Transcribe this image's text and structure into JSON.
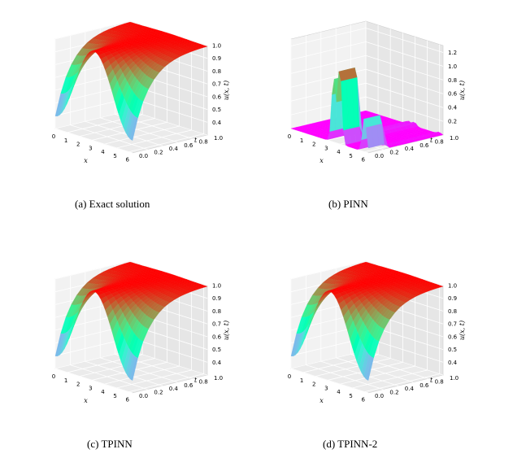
{
  "captions": {
    "a": "(a)  Exact solution",
    "b": "(b)  PINN",
    "c": "(c)  TPINN",
    "d": "(d)  TPINN-2"
  },
  "chart_data": [
    {
      "type": "surface3d",
      "id": "a",
      "xlabel": "x",
      "ylabel": "t",
      "zlabel": "u(x, t)",
      "x_ticks": [
        "0",
        "1",
        "2",
        "3",
        "4",
        "5",
        "6"
      ],
      "t_ticks": [
        "0.0",
        "0.2",
        "0.4",
        "0.6",
        "0.8",
        "1.0"
      ],
      "z_ticks": [
        "0.4",
        "0.5",
        "0.6",
        "0.7",
        "0.8",
        "0.9",
        "1.0"
      ],
      "xlim": [
        0,
        6.2832
      ],
      "tlim": [
        0,
        1
      ],
      "zlim": [
        0.3,
        1.0
      ],
      "colormap": "rainbow",
      "surface": "profile"
    },
    {
      "type": "surface3d",
      "id": "b",
      "xlabel": "x",
      "ylabel": "t",
      "zlabel": "u(x, t)",
      "x_ticks": [
        "0",
        "1",
        "2",
        "3",
        "4",
        "5",
        "6"
      ],
      "t_ticks": [
        "0.0",
        "0.2",
        "0.4",
        "0.6",
        "0.8",
        "1.0"
      ],
      "z_ticks": [
        "0.2",
        "0.4",
        "0.6",
        "0.8",
        "1.0",
        "1.2"
      ],
      "xlim": [
        0,
        6.2832
      ],
      "tlim": [
        0,
        1
      ],
      "zlim": [
        0.0,
        1.3
      ],
      "colormap": "rainbow",
      "surface": "flat-with-spikes"
    },
    {
      "type": "surface3d",
      "id": "c",
      "xlabel": "x",
      "ylabel": "t",
      "zlabel": "u(x, t)",
      "x_ticks": [
        "0",
        "1",
        "2",
        "3",
        "4",
        "5",
        "6"
      ],
      "t_ticks": [
        "0.0",
        "0.2",
        "0.4",
        "0.6",
        "0.8",
        "1.0"
      ],
      "z_ticks": [
        "0.4",
        "0.5",
        "0.6",
        "0.7",
        "0.8",
        "0.9",
        "1.0"
      ],
      "xlim": [
        0,
        6.2832
      ],
      "tlim": [
        0,
        1
      ],
      "zlim": [
        0.3,
        1.0
      ],
      "colormap": "rainbow",
      "surface": "profile"
    },
    {
      "type": "surface3d",
      "id": "d",
      "xlabel": "x",
      "ylabel": "t",
      "zlabel": "u(x, t)",
      "x_ticks": [
        "0",
        "1",
        "2",
        "3",
        "4",
        "5",
        "6"
      ],
      "t_ticks": [
        "0.0",
        "0.2",
        "0.4",
        "0.6",
        "0.8",
        "1.0"
      ],
      "z_ticks": [
        "0.4",
        "0.5",
        "0.6",
        "0.7",
        "0.8",
        "0.9",
        "1.0"
      ],
      "xlim": [
        0,
        6.2832
      ],
      "tlim": [
        0,
        1
      ],
      "zlim": [
        0.3,
        1.0
      ],
      "colormap": "rainbow",
      "surface": "profile"
    }
  ]
}
